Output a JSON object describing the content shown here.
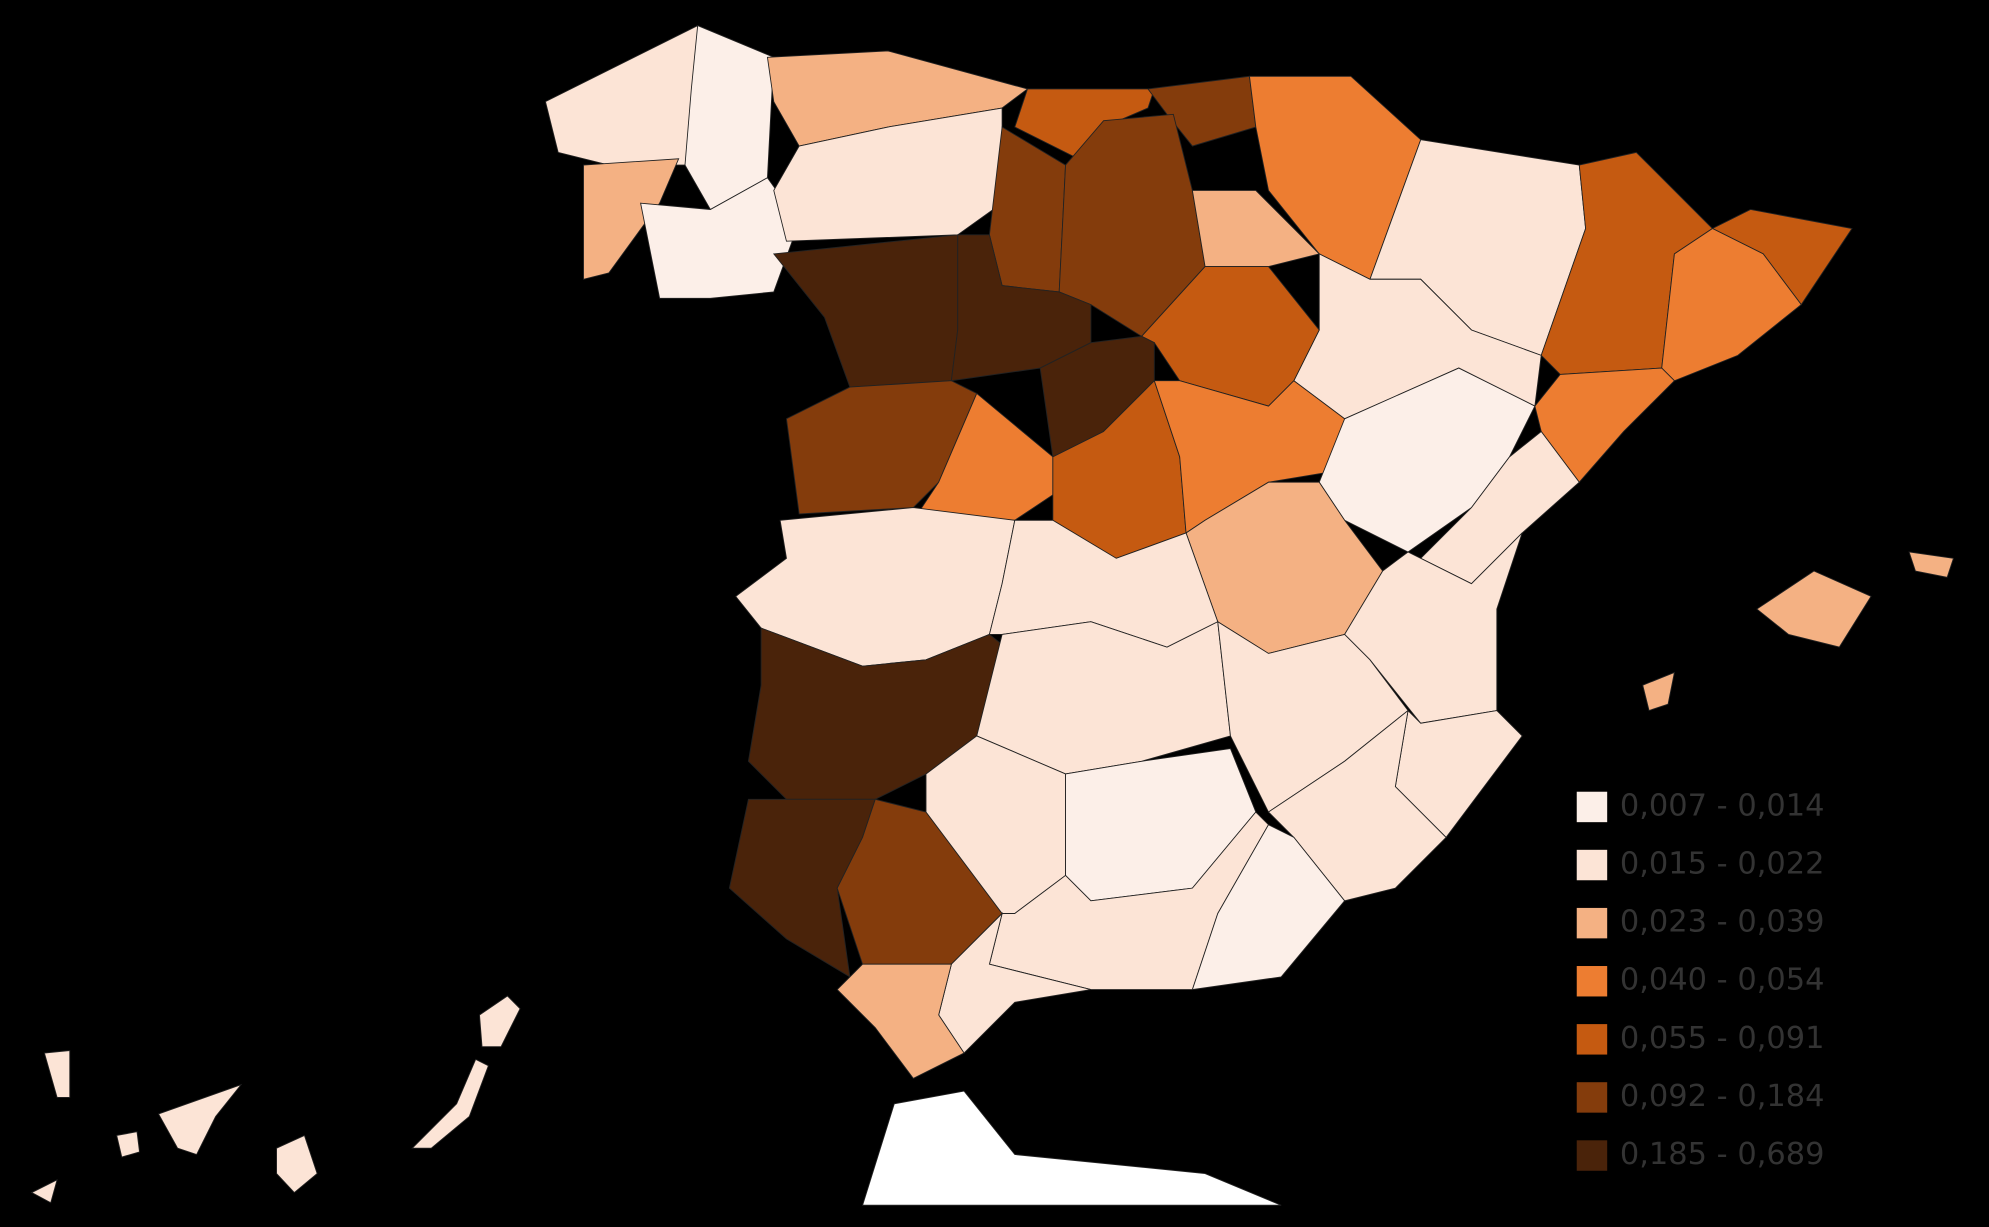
{
  "legend": [
    {
      "label": "0,007 - 0,014",
      "color": "#fcefe8"
    },
    {
      "label": "0,015 - 0,022",
      "color": "#fce4d6"
    },
    {
      "label": "0,023 - 0,039",
      "color": "#f4b183"
    },
    {
      "label": "0,040 - 0,054",
      "color": "#ed7d31"
    },
    {
      "label": "0,055 - 0,091",
      "color": "#c55a11"
    },
    {
      "label": "0,092 - 0,184",
      "color": "#843c0c"
    },
    {
      "label": "0,185 - 0,689",
      "color": "#4a230a"
    }
  ]
}
